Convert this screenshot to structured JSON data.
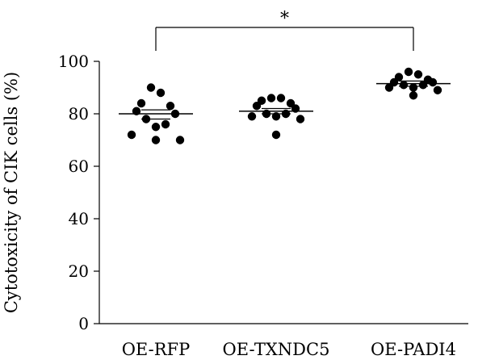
{
  "chart_data": {
    "type": "scatter",
    "title": "",
    "ylabel": "Cytotoxicity of CIK cells (%)",
    "xlabel": "",
    "ylim": [
      0,
      100
    ],
    "yticks": [
      0,
      20,
      40,
      60,
      80,
      100
    ],
    "grid": false,
    "categories": [
      "OE-RFP",
      "OE-TXNDC5",
      "OE-PADI4"
    ],
    "groups": [
      {
        "category": "OE-RFP",
        "values": [
          90,
          88,
          84,
          83,
          81,
          80,
          78,
          76,
          75,
          72,
          70,
          70
        ],
        "mean": 80,
        "sem_low": 78,
        "sem_high": 81.5
      },
      {
        "category": "OE-TXNDC5",
        "values": [
          86,
          86,
          85,
          84,
          83,
          82,
          80,
          80,
          79,
          79,
          78,
          72
        ],
        "mean": 81,
        "sem_low": 80,
        "sem_high": 82
      },
      {
        "category": "OE-PADI4",
        "values": [
          96,
          95,
          94,
          93,
          92,
          92,
          91,
          91,
          90,
          90,
          89,
          87
        ],
        "mean": 91.5,
        "sem_low": 90.5,
        "sem_high": 92.5
      }
    ],
    "significance": {
      "from": "OE-RFP",
      "to": "OE-PADI4",
      "label": "*"
    }
  }
}
